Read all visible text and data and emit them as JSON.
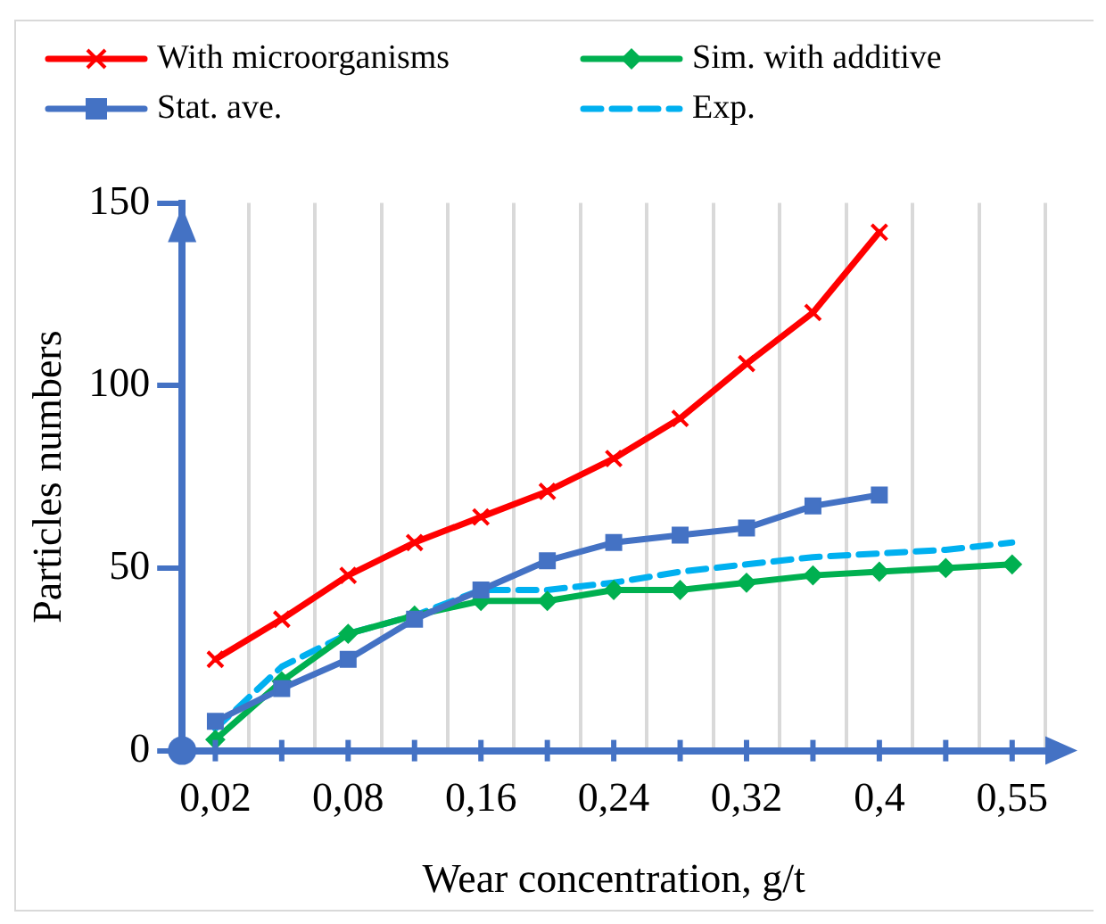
{
  "chart_data": {
    "type": "line",
    "xlabel": "Wear concentration, g/t",
    "ylabel": "Particles numbers",
    "categories": [
      "0,02",
      null,
      "0,08",
      null,
      "0,16",
      null,
      "0,24",
      null,
      "0,32",
      null,
      "0,4",
      null,
      "0,55"
    ],
    "series": [
      {
        "name": "With microorganisms",
        "color": "#ff0000",
        "marker": "cross",
        "values": [
          25,
          36,
          48,
          57,
          64,
          71,
          80,
          91,
          106,
          120,
          142,
          null,
          null
        ]
      },
      {
        "name": "Sim. with additive",
        "color": "#00b050",
        "marker": "diamond",
        "values": [
          3,
          19,
          32,
          37,
          41,
          41,
          44,
          44,
          46,
          48,
          49,
          50,
          51
        ]
      },
      {
        "name": "Stat. ave.",
        "color": "#4472c4",
        "marker": "square",
        "values": [
          8,
          17,
          25,
          36,
          44,
          52,
          57,
          59,
          61,
          67,
          70,
          null,
          null
        ]
      },
      {
        "name": "Exp.",
        "color": "#00b0f0",
        "marker": "none",
        "line_style": "dashed",
        "values": [
          6,
          23,
          32,
          37,
          44,
          44,
          46,
          49,
          51,
          53,
          54,
          55,
          57
        ]
      }
    ],
    "ylim": [
      0,
      150
    ],
    "yticks": [
      0,
      50,
      100,
      150
    ],
    "grid": "x",
    "legend": "top"
  }
}
